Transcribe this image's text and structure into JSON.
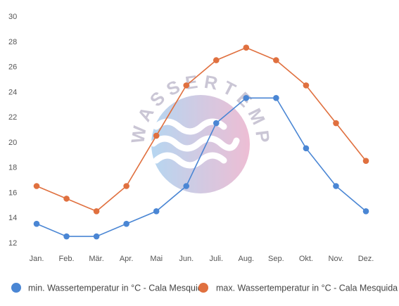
{
  "watermark": {
    "text": "WASSERTEMPERATUR.ORG"
  },
  "chart_data": {
    "type": "line",
    "categories": [
      "Jan.",
      "Feb.",
      "Mär.",
      "Apr.",
      "Mai",
      "Jun.",
      "Juli.",
      "Aug.",
      "Sep.",
      "Okt.",
      "Nov.",
      "Dez."
    ],
    "series": [
      {
        "name": "min. Wassertemperatur in °C - Cala Mesquida",
        "color": "#4a86d4",
        "values": [
          13.5,
          12.5,
          12.5,
          13.5,
          14.5,
          16.5,
          21.5,
          23.5,
          23.5,
          19.5,
          16.5,
          14.5
        ]
      },
      {
        "name": "max. Wassertemperatur in °C - Cala Mesquida",
        "color": "#e0703f",
        "values": [
          16.5,
          15.5,
          14.5,
          16.5,
          20.5,
          24.5,
          26.5,
          27.5,
          26.5,
          24.5,
          21.5,
          18.5
        ]
      }
    ],
    "y_ticks": [
      12,
      14,
      16,
      18,
      20,
      22,
      24,
      26,
      28,
      30
    ],
    "ylim": [
      12,
      30
    ],
    "grid": false,
    "legend_position": "bottom",
    "title": "",
    "xlabel": "",
    "ylabel": ""
  }
}
